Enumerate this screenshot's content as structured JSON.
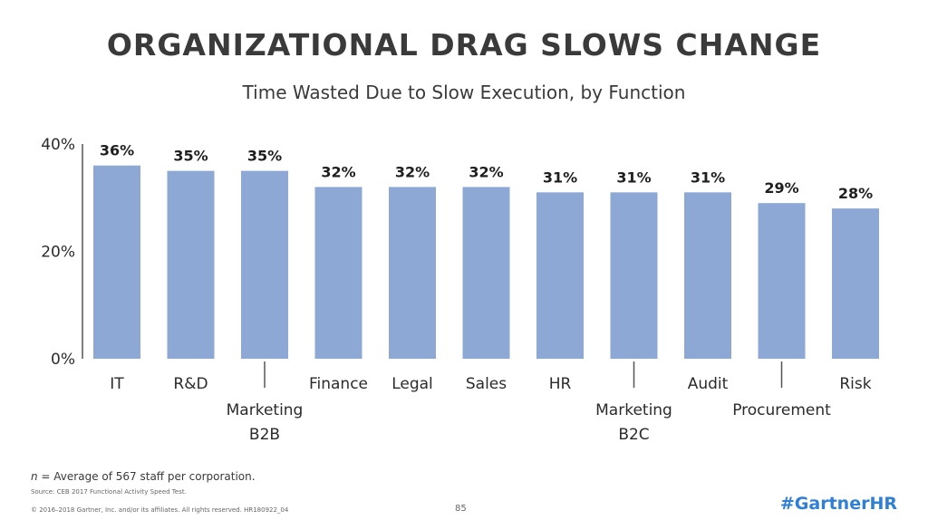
{
  "header": {
    "title": "ORGANIZATIONAL DRAG SLOWS CHANGE",
    "subtitle": "Time Wasted Due to Slow Execution, by Function"
  },
  "footer": {
    "note_n": "n",
    "note_rest": " = Average of 567 staff per corporation.",
    "source": "Source: CEB 2017 Functional Activity Speed Test.",
    "copyright": "© 2016–2018 Gartner, Inc. and/or its affiliates. All rights reserved. HR180922_04",
    "page_number": "85",
    "hashtag": "#GartnerHR"
  },
  "colors": {
    "bar": "#8ea8d6",
    "axis": "#555555"
  },
  "chart_data": {
    "type": "bar",
    "title": "Time Wasted Due to Slow Execution, by Function",
    "categories": [
      "IT",
      "R&D",
      "Marketing B2B",
      "Finance",
      "Legal",
      "Sales",
      "HR",
      "Marketing B2C",
      "Audit",
      "Procurement",
      "Risk"
    ],
    "category_label_lines": [
      [
        "IT"
      ],
      [
        "R&D"
      ],
      [
        "Marketing",
        "B2B"
      ],
      [
        "Finance"
      ],
      [
        "Legal"
      ],
      [
        "Sales"
      ],
      [
        "HR"
      ],
      [
        "Marketing",
        "B2C"
      ],
      [
        "Audit"
      ],
      [
        "Procurement"
      ],
      [
        "Risk"
      ]
    ],
    "category_label_row": [
      0,
      0,
      1,
      0,
      0,
      0,
      0,
      1,
      0,
      1,
      0
    ],
    "values": [
      36,
      35,
      35,
      32,
      32,
      32,
      31,
      31,
      31,
      29,
      28
    ],
    "data_labels": [
      "36%",
      "35%",
      "35%",
      "32%",
      "32%",
      "32%",
      "31%",
      "31%",
      "31%",
      "29%",
      "28%"
    ],
    "ylim": [
      0,
      40
    ],
    "yticks": [
      0,
      20,
      40
    ],
    "ytick_labels": [
      "0%",
      "20%",
      "40%"
    ],
    "grid": false,
    "legend": "none"
  }
}
